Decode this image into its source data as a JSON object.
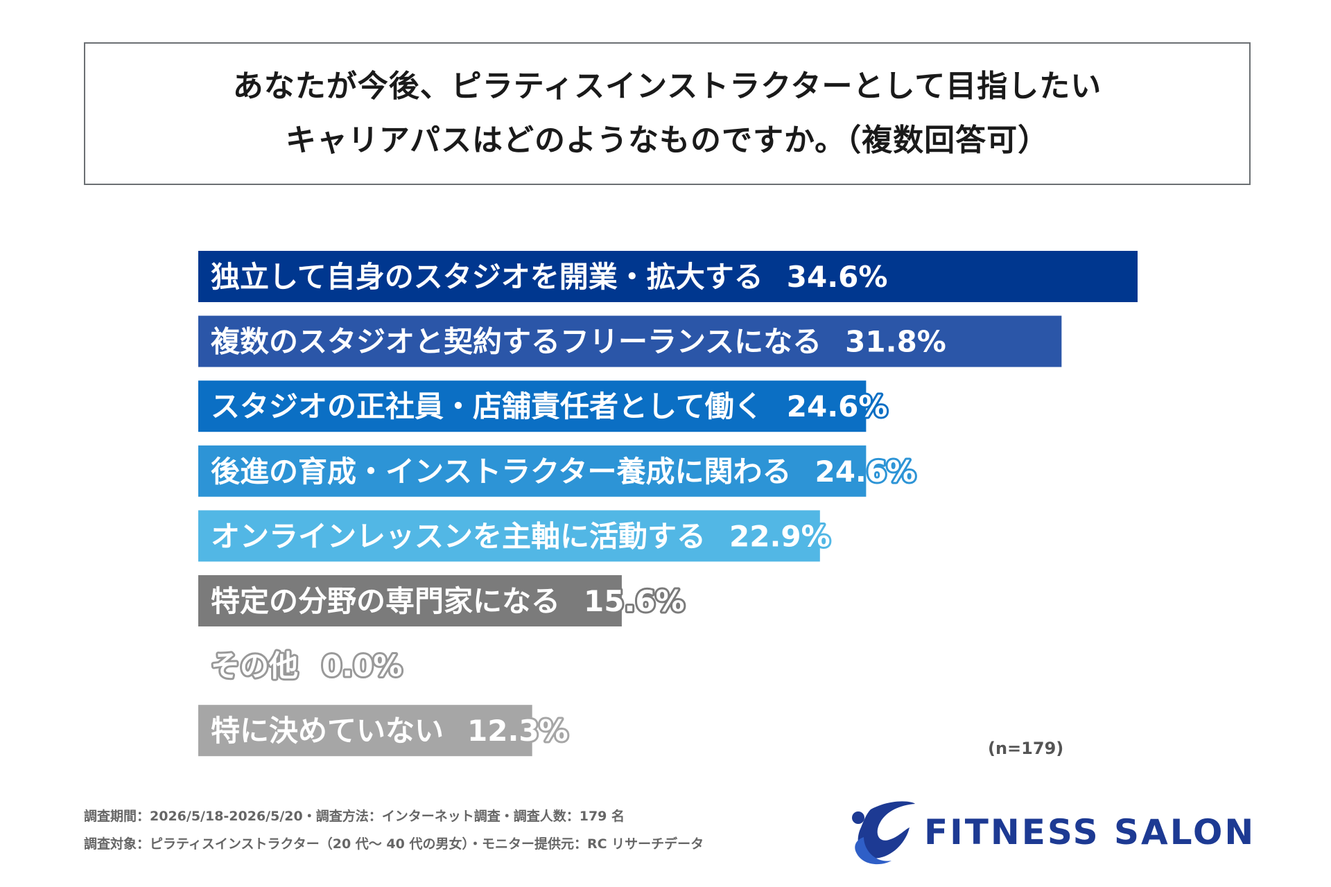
{
  "title": {
    "line1": "あなたが今後、ピラティスインストラクターとして目指したい",
    "line2": "キャリアパスはどのようなものですか。（複数回答可）"
  },
  "chart_data": {
    "type": "bar",
    "orientation": "horizontal",
    "categories": [
      "独立して自身のスタジオを開業・拡大する",
      "複数のスタジオと契約するフリーランスになる",
      "スタジオの正社員・店舗責任者として働く",
      "後進の育成・インストラクター養成に関わる",
      "オンラインレッスンを主軸に活動する",
      "特定の分野の専門家になる",
      "その他",
      "特に決めていない"
    ],
    "values": [
      34.6,
      31.8,
      24.6,
      24.6,
      22.9,
      15.6,
      0.0,
      12.3
    ],
    "value_labels": [
      "34.6%",
      "31.8%",
      "24.6%",
      "24.6%",
      "22.9%",
      "15.6%",
      "0.0%",
      "12.3%"
    ],
    "colors": [
      "#00378f",
      "#2b56a8",
      "#0b6fc4",
      "#2d94d6",
      "#52b7e5",
      "#7b7b7b",
      "#999999",
      "#a6a6a6"
    ],
    "grid": false,
    "legend": "none"
  },
  "sample_size": "(n=179)",
  "footnotes": {
    "line1": "調査期間：2026/5/18-2026/5/20・調査方法：インターネット調査・調査人数：179 名",
    "line2": "調査対象：ピラティスインストラクター（20 代～ 40 代の男女）・モニター提供元：RC リサーチデータ"
  },
  "logo": {
    "text": "FITNESS SALON",
    "color": "#1d3a93",
    "icon": "fitness-salon-swoosh-icon"
  }
}
